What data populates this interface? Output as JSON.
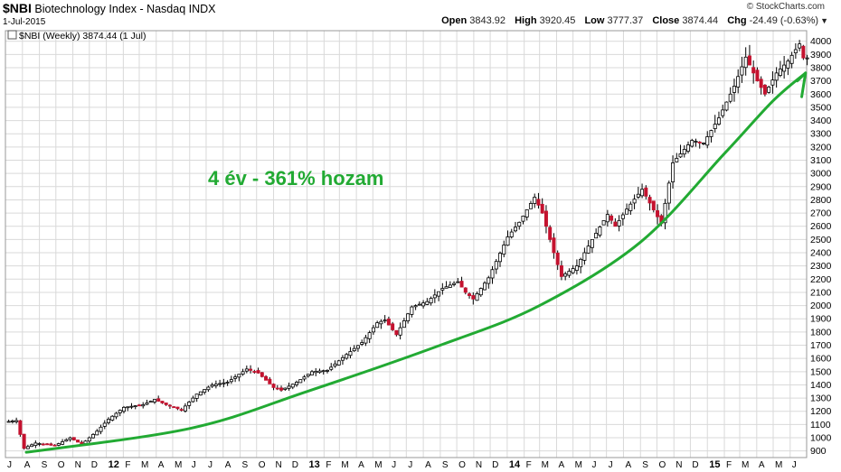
{
  "header": {
    "symbol": "$NBI",
    "title": "Biotechnology Index - Nasdaq INDX",
    "date": "1-Jul-2015",
    "brand": "© StockCharts.com",
    "open_label": "Open",
    "open": "3843.92",
    "high_label": "High",
    "high": "3920.45",
    "low_label": "Low",
    "low": "3777.37",
    "close_label": "Close",
    "close": "3874.44",
    "chg_label": "Chg",
    "chg": "-24.49 (-0.63%)"
  },
  "chart_data": {
    "type": "candlestick",
    "legend": "$NBI (Weekly) 3874.44 (1 Jul)",
    "annotation": "4 év - 361% hozam",
    "ylim": [
      850,
      4080
    ],
    "y_ticks": [
      900,
      1000,
      1100,
      1200,
      1300,
      1400,
      1500,
      1600,
      1700,
      1800,
      1900,
      2000,
      2100,
      2200,
      2300,
      2400,
      2500,
      2600,
      2700,
      2800,
      2900,
      3000,
      3100,
      3200,
      3300,
      3400,
      3500,
      3600,
      3700,
      3800,
      3900,
      4000
    ],
    "x_labels": [
      "J",
      "A",
      "S",
      "O",
      "N",
      "D",
      "12",
      "F",
      "M",
      "A",
      "M",
      "J",
      "J",
      "A",
      "S",
      "O",
      "N",
      "D",
      "13",
      "F",
      "M",
      "A",
      "M",
      "J",
      "J",
      "A",
      "S",
      "O",
      "N",
      "D",
      "14",
      "F",
      "M",
      "A",
      "M",
      "J",
      "J",
      "A",
      "S",
      "O",
      "N",
      "D",
      "15",
      "F",
      "M",
      "A",
      "M",
      "J"
    ],
    "year_labels": [
      "12",
      "13",
      "14",
      "15"
    ],
    "x_range": [
      "2011-07",
      "2015-07"
    ],
    "grid": true,
    "colors": {
      "up": "#000000",
      "down": "#c4122f",
      "trend": "#22aa33",
      "grid": "#d9d9d9"
    },
    "anchors": [
      [
        "2011-07-04",
        1120
      ],
      [
        "2011-07-25",
        1130
      ],
      [
        "2011-08-08",
        920
      ],
      [
        "2011-08-29",
        960
      ],
      [
        "2011-10-03",
        940
      ],
      [
        "2011-10-31",
        1000
      ],
      [
        "2011-11-21",
        950
      ],
      [
        "2011-12-19",
        1050
      ],
      [
        "2012-01-09",
        1140
      ],
      [
        "2012-02-06",
        1230
      ],
      [
        "2012-03-12",
        1250
      ],
      [
        "2012-04-02",
        1290
      ],
      [
        "2012-04-23",
        1250
      ],
      [
        "2012-05-21",
        1210
      ],
      [
        "2012-06-18",
        1330
      ],
      [
        "2012-07-16",
        1400
      ],
      [
        "2012-08-13",
        1420
      ],
      [
        "2012-09-17",
        1520
      ],
      [
        "2012-10-08",
        1490
      ],
      [
        "2012-11-05",
        1380
      ],
      [
        "2012-11-19",
        1360
      ],
      [
        "2012-12-17",
        1420
      ],
      [
        "2013-01-14",
        1500
      ],
      [
        "2013-02-11",
        1510
      ],
      [
        "2013-03-18",
        1630
      ],
      [
        "2013-04-15",
        1720
      ],
      [
        "2013-05-13",
        1870
      ],
      [
        "2013-05-27",
        1890
      ],
      [
        "2013-06-17",
        1780
      ],
      [
        "2013-07-15",
        1990
      ],
      [
        "2013-08-12",
        2030
      ],
      [
        "2013-09-09",
        2130
      ],
      [
        "2013-10-07",
        2180
      ],
      [
        "2013-10-21",
        2100
      ],
      [
        "2013-11-04",
        2050
      ],
      [
        "2013-12-02",
        2210
      ],
      [
        "2014-01-06",
        2520
      ],
      [
        "2014-01-27",
        2630
      ],
      [
        "2014-02-24",
        2820
      ],
      [
        "2014-03-10",
        2700
      ],
      [
        "2014-03-31",
        2400
      ],
      [
        "2014-04-14",
        2220
      ],
      [
        "2014-05-12",
        2300
      ],
      [
        "2014-06-09",
        2500
      ],
      [
        "2014-07-07",
        2690
      ],
      [
        "2014-07-21",
        2600
      ],
      [
        "2014-08-11",
        2730
      ],
      [
        "2014-09-08",
        2880
      ],
      [
        "2014-10-13",
        2620
      ],
      [
        "2014-11-03",
        3080
      ],
      [
        "2014-12-08",
        3250
      ],
      [
        "2014-12-29",
        3230
      ],
      [
        "2015-01-26",
        3420
      ],
      [
        "2015-02-23",
        3660
      ],
      [
        "2015-03-16",
        3880
      ],
      [
        "2015-04-06",
        3700
      ],
      [
        "2015-04-20",
        3600
      ],
      [
        "2015-05-11",
        3760
      ],
      [
        "2015-06-01",
        3850
      ],
      [
        "2015-06-22",
        3980
      ],
      [
        "2015-06-29",
        3874
      ]
    ],
    "trendline": [
      [
        "2011-08-08",
        890
      ],
      [
        "2012-06-01",
        1070
      ],
      [
        "2013-01-01",
        1350
      ],
      [
        "2013-09-01",
        1700
      ],
      [
        "2014-03-01",
        2000
      ],
      [
        "2014-09-01",
        2480
      ],
      [
        "2015-02-01",
        3150
      ],
      [
        "2015-05-01",
        3550
      ],
      [
        "2015-06-29",
        3760
      ]
    ],
    "arrowhead": [
      [
        "2015-06-14",
        3700
      ],
      [
        "2015-06-29",
        3760
      ],
      [
        "2015-06-22",
        3580
      ]
    ]
  }
}
